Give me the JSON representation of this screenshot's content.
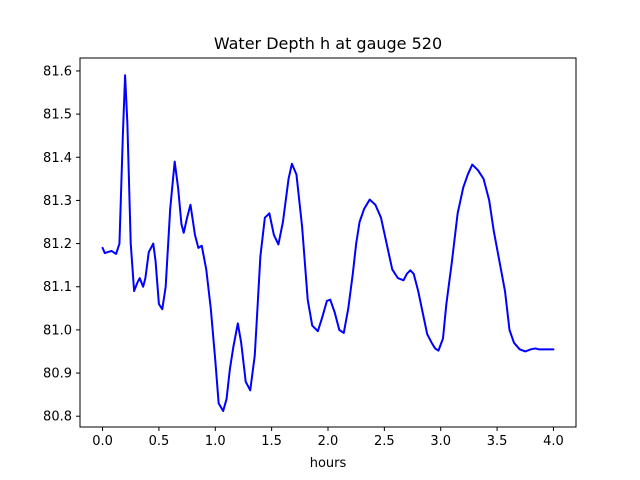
{
  "chart_data": {
    "type": "line",
    "title": "Water Depth h at gauge 520",
    "xlabel": "hours",
    "ylabel": "",
    "xlim": [
      -0.2,
      4.2
    ],
    "ylim": [
      80.775,
      81.63
    ],
    "x_ticks": [
      0.0,
      0.5,
      1.0,
      1.5,
      2.0,
      2.5,
      3.0,
      3.5,
      4.0
    ],
    "x_tick_labels": [
      "0.0",
      "0.5",
      "1.0",
      "1.5",
      "2.0",
      "2.5",
      "3.0",
      "3.5",
      "4.0"
    ],
    "y_ticks": [
      80.8,
      80.9,
      81.0,
      81.1,
      81.2,
      81.3,
      81.4,
      81.5,
      81.6
    ],
    "y_tick_labels": [
      "80.8",
      "80.9",
      "81.0",
      "81.1",
      "81.2",
      "81.3",
      "81.4",
      "81.5",
      "81.6"
    ],
    "grid": false,
    "series": [
      {
        "color": "#0000ff",
        "x": [
          0.0,
          0.02,
          0.08,
          0.12,
          0.15,
          0.18,
          0.2,
          0.22,
          0.25,
          0.28,
          0.31,
          0.33,
          0.36,
          0.38,
          0.41,
          0.45,
          0.47,
          0.5,
          0.53,
          0.56,
          0.6,
          0.64,
          0.67,
          0.7,
          0.72,
          0.75,
          0.78,
          0.82,
          0.85,
          0.88,
          0.92,
          0.96,
          1.0,
          1.03,
          1.07,
          1.1,
          1.13,
          1.16,
          1.2,
          1.23,
          1.27,
          1.31,
          1.35,
          1.37,
          1.4,
          1.44,
          1.48,
          1.52,
          1.56,
          1.6,
          1.65,
          1.68,
          1.72,
          1.77,
          1.82,
          1.86,
          1.91,
          1.95,
          1.99,
          2.02,
          2.06,
          2.1,
          2.14,
          2.18,
          2.22,
          2.25,
          2.28,
          2.32,
          2.37,
          2.42,
          2.47,
          2.52,
          2.57,
          2.62,
          2.67,
          2.7,
          2.73,
          2.76,
          2.8,
          2.84,
          2.88,
          2.92,
          2.95,
          2.98,
          3.02,
          3.05,
          3.1,
          3.15,
          3.2,
          3.24,
          3.28,
          3.33,
          3.38,
          3.43,
          3.47,
          3.52,
          3.57,
          3.61,
          3.65,
          3.7,
          3.75,
          3.8,
          3.84,
          3.87,
          3.9,
          3.95,
          4.0
        ],
        "y": [
          81.19,
          81.178,
          81.183,
          81.176,
          81.2,
          81.45,
          81.59,
          81.48,
          81.2,
          81.09,
          81.11,
          81.12,
          81.1,
          81.12,
          81.18,
          81.2,
          81.16,
          81.06,
          81.048,
          81.1,
          81.28,
          81.39,
          81.33,
          81.245,
          81.225,
          81.26,
          81.29,
          81.22,
          81.19,
          81.195,
          81.14,
          81.05,
          80.93,
          80.83,
          80.812,
          80.84,
          80.91,
          80.96,
          81.015,
          80.97,
          80.88,
          80.86,
          80.94,
          81.03,
          81.17,
          81.26,
          81.27,
          81.22,
          81.198,
          81.25,
          81.35,
          81.385,
          81.36,
          81.24,
          81.07,
          81.01,
          80.997,
          81.03,
          81.067,
          81.07,
          81.04,
          81.0,
          80.993,
          81.05,
          81.13,
          81.2,
          81.25,
          81.28,
          81.302,
          81.29,
          81.26,
          81.2,
          81.14,
          81.12,
          81.115,
          81.13,
          81.138,
          81.13,
          81.09,
          81.04,
          80.99,
          80.97,
          80.957,
          80.952,
          80.98,
          81.06,
          81.16,
          81.27,
          81.33,
          81.36,
          81.383,
          81.37,
          81.35,
          81.3,
          81.23,
          81.16,
          81.09,
          81.0,
          80.97,
          80.955,
          80.95,
          80.955,
          80.957,
          80.955,
          80.955,
          80.955,
          80.955
        ]
      }
    ]
  }
}
